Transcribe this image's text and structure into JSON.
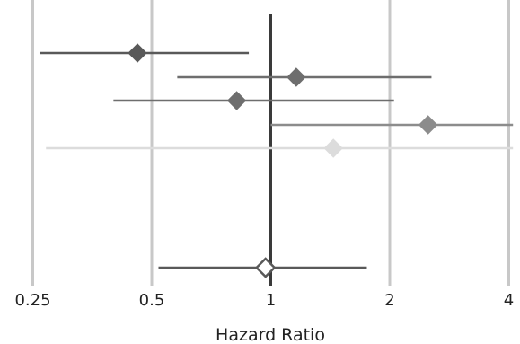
{
  "chart_data": {
    "type": "forest",
    "title": "",
    "xlabel": "Hazard Ratio",
    "ylabel": "",
    "x_scale": "log2",
    "xlim": [
      0.25,
      4
    ],
    "x_ticks": [
      {
        "value": 0.25,
        "label": "0.25"
      },
      {
        "value": 0.5,
        "label": "0.5"
      },
      {
        "value": 1,
        "label": "1"
      },
      {
        "value": 2,
        "label": "2"
      },
      {
        "value": 4,
        "label": "4"
      }
    ],
    "reference_line": 1,
    "grid": "vertical",
    "legend": "none",
    "rows": [
      {
        "hr": 0.46,
        "lower": 0.26,
        "upper": 0.88,
        "color": "#595959",
        "marker": "filled-diamond"
      },
      {
        "hr": 1.16,
        "lower": 0.58,
        "upper": 2.55,
        "color": "#6e6e6e",
        "marker": "filled-diamond"
      },
      {
        "hr": 0.82,
        "lower": 0.4,
        "upper": 2.05,
        "color": "#6e6e6e",
        "marker": "filled-diamond"
      },
      {
        "hr": 2.5,
        "lower": 1.0,
        "upper": 4.1,
        "color": "#8c8c8c",
        "marker": "filled-diamond"
      },
      {
        "hr": 1.44,
        "lower": 0.27,
        "upper": 4.1,
        "color": "#dcdcdc",
        "marker": "filled-diamond"
      },
      {
        "hr": 0.97,
        "lower": 0.52,
        "upper": 1.75,
        "color": "#595959",
        "marker": "open-diamond"
      }
    ]
  }
}
